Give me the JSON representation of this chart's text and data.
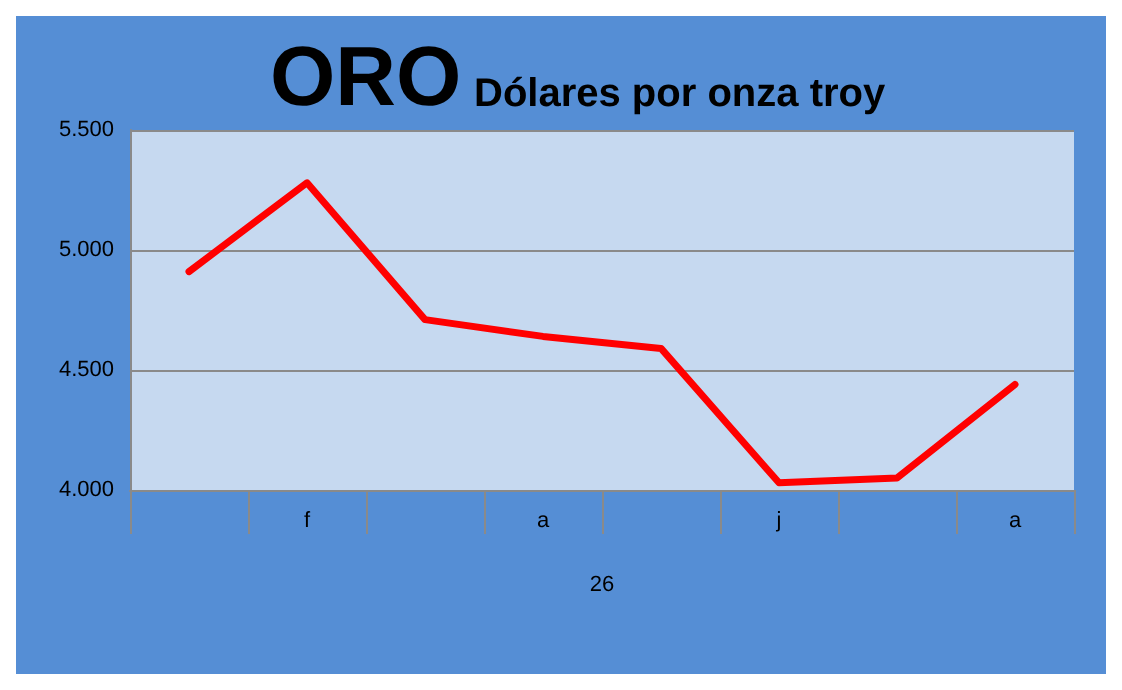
{
  "chart_data": {
    "type": "line",
    "title": "ORO",
    "subtitle": "Dólares por onza troy",
    "xlabel": "26",
    "categories": [
      null,
      "f",
      null,
      "a",
      null,
      "j",
      null,
      "a"
    ],
    "series": [
      {
        "color": "#ff0000",
        "values": [
          4910,
          5280,
          4710,
          4640,
          4590,
          4030,
          4050,
          4440
        ]
      }
    ],
    "ylim": [
      4000,
      5500
    ],
    "yticks": [
      {
        "value": 4000,
        "label": "4.000"
      },
      {
        "value": 4500,
        "label": "4.500"
      },
      {
        "value": 5000,
        "label": "5.000"
      },
      {
        "value": 5500,
        "label": "5.500"
      }
    ],
    "grid": "y",
    "marker": "none",
    "line_style": "solid"
  }
}
